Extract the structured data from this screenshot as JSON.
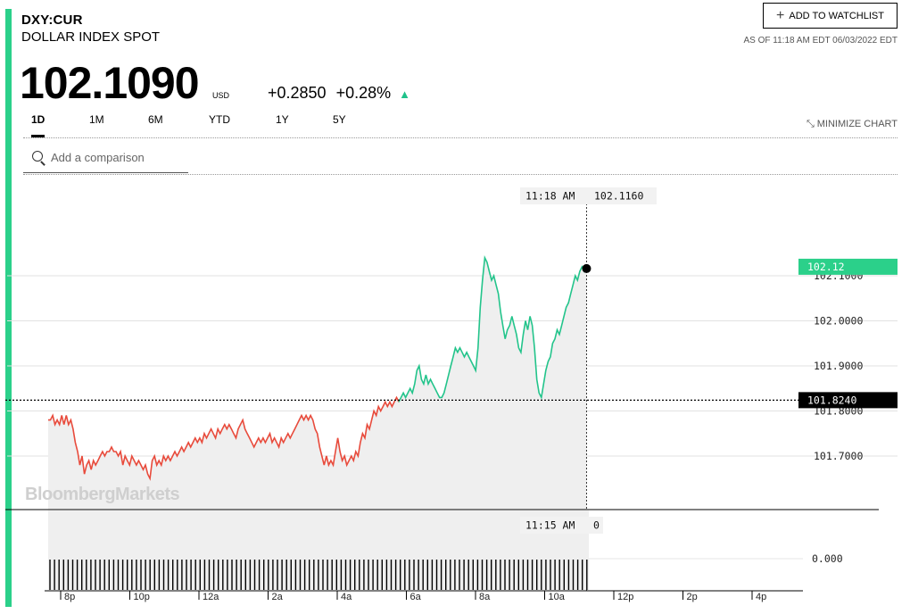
{
  "header": {
    "ticker": "DXY:CUR",
    "name": "DOLLAR INDEX SPOT",
    "price": "102.1090",
    "currency": "USD",
    "change_abs": "+0.2850",
    "change_pct": "+0.28%",
    "up_icon": "triangle-up-icon",
    "as_of": "AS OF 11:18 AM EDT 06/03/2022 EDT",
    "watchlist_label": "ADD TO WATCHLIST",
    "minimize_label": "MINIMIZE CHART"
  },
  "tabs": [
    "1D",
    "1M",
    "6M",
    "YTD",
    "1Y",
    "5Y"
  ],
  "active_tab": "1D",
  "search": {
    "placeholder": "Add a comparison"
  },
  "watermark": "BloombergMarkets",
  "colors": {
    "accent": "#2bd08a",
    "up": "#1fc28a",
    "down": "#e84b3c",
    "line_up": "#23c48b",
    "line_down": "#e84b3c"
  },
  "chart_data": {
    "type": "line",
    "x_ticks": [
      "8p",
      "10p",
      "12a",
      "2a",
      "4a",
      "6a",
      "8a",
      "10a",
      "12p",
      "2p",
      "4p"
    ],
    "y_ticks": [
      "101.7000",
      "101.8000",
      "101.9000",
      "102.0000",
      "102.1000"
    ],
    "ylim": [
      101.62,
      102.21
    ],
    "previous_close": "101.8240",
    "current_value": "102.12",
    "crosshair": {
      "time": "11:18 AM",
      "value": "102.1160"
    },
    "volume_crosshair": {
      "time": "11:15 AM",
      "value": "0"
    },
    "volume_axis": "0.000",
    "series": [
      {
        "values": [
          101.78,
          101.78,
          101.79,
          101.77,
          101.78,
          101.77,
          101.79,
          101.77,
          101.79,
          101.77,
          101.78,
          101.76,
          101.73,
          101.71,
          101.68,
          101.7,
          101.66,
          101.68,
          101.69,
          101.67,
          101.69,
          101.68,
          101.69,
          101.7,
          101.71,
          101.7,
          101.71,
          101.71,
          101.72,
          101.71,
          101.71,
          101.7,
          101.71,
          101.68,
          101.7,
          101.69,
          101.68,
          101.7,
          101.69,
          101.68,
          101.69,
          101.68,
          101.67,
          101.68,
          101.66,
          101.65,
          101.69,
          101.7,
          101.68,
          101.69,
          101.68,
          101.7,
          101.69,
          101.7,
          101.69,
          101.7,
          101.71,
          101.7,
          101.71,
          101.72,
          101.71,
          101.72,
          101.73,
          101.72,
          101.73,
          101.74,
          101.73,
          101.74,
          101.73,
          101.75,
          101.74,
          101.75,
          101.76,
          101.75,
          101.74,
          101.76,
          101.75,
          101.76,
          101.77,
          101.76,
          101.77,
          101.76,
          101.75,
          101.74,
          101.76,
          101.77,
          101.78,
          101.76,
          101.75,
          101.74,
          101.73,
          101.72,
          101.73,
          101.74,
          101.73,
          101.74,
          101.73,
          101.74,
          101.75,
          101.73,
          101.74,
          101.73,
          101.72,
          101.74,
          101.73,
          101.74,
          101.75,
          101.74,
          101.75,
          101.76,
          101.77,
          101.78,
          101.79,
          101.78,
          101.79,
          101.78,
          101.79,
          101.78,
          101.76,
          101.75,
          101.72,
          101.7,
          101.68,
          101.7,
          101.68,
          101.69,
          101.68,
          101.71,
          101.74,
          101.71,
          101.69,
          101.7,
          101.68,
          101.69,
          101.7,
          101.69,
          101.71,
          101.7,
          101.73,
          101.75,
          101.74,
          101.77,
          101.76,
          101.78,
          101.8,
          101.79,
          101.81,
          101.8,
          101.81,
          101.82,
          101.81,
          101.82,
          101.81,
          101.82,
          101.83,
          101.82
        ]
      },
      {
        "values": [
          101.82,
          101.83,
          101.84,
          101.83,
          101.84,
          101.85,
          101.84,
          101.86,
          101.89,
          101.9,
          101.87,
          101.86,
          101.88,
          101.86,
          101.87,
          101.86,
          101.85,
          101.84,
          101.83,
          101.83,
          101.84,
          101.86,
          101.88,
          101.9,
          101.92,
          101.94,
          101.93,
          101.94,
          101.93,
          101.92,
          101.93,
          101.92,
          101.91,
          101.9,
          101.89,
          101.94,
          102.03,
          102.09,
          102.14,
          102.13,
          102.11,
          102.09,
          102.1,
          102.08,
          102.06,
          102.02,
          101.99,
          101.96,
          101.98,
          101.99,
          102.01,
          101.99,
          101.97,
          101.94,
          101.93,
          101.97,
          102.0,
          101.98,
          102.01,
          101.99,
          101.94,
          101.87,
          101.84,
          101.83,
          101.86,
          101.89,
          101.91,
          101.92,
          101.95,
          101.96,
          101.98,
          101.97,
          101.99,
          102.01,
          102.03,
          102.04,
          102.06,
          102.08,
          102.1,
          102.09,
          102.11,
          102.12,
          102.11,
          102.12
        ]
      }
    ]
  }
}
